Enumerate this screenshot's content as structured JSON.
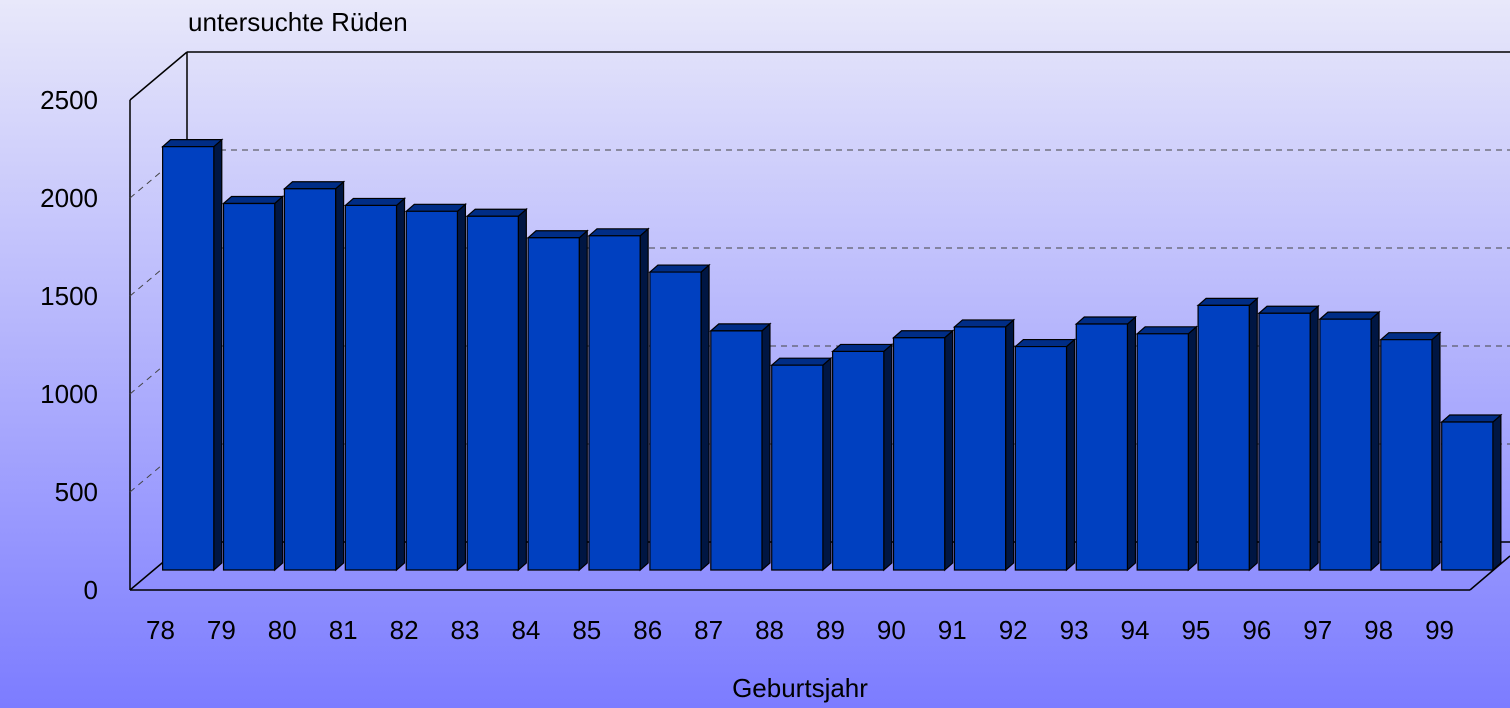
{
  "chart_data": {
    "type": "bar3d",
    "title": "untersuchte Rüden",
    "x_label": "Geburtsjahr",
    "categories": [
      "78",
      "79",
      "80",
      "81",
      "82",
      "83",
      "84",
      "85",
      "86",
      "87",
      "88",
      "89",
      "90",
      "91",
      "92",
      "93",
      "94",
      "95",
      "96",
      "97",
      "98",
      "99"
    ],
    "values": [
      2160,
      1870,
      1945,
      1860,
      1830,
      1805,
      1695,
      1705,
      1520,
      1220,
      1045,
      1115,
      1185,
      1240,
      1140,
      1255,
      1205,
      1350,
      1310,
      1280,
      1175,
      755
    ],
    "color": "#0040c0",
    "ylim": [
      0,
      2500
    ],
    "yticks": [
      0,
      500,
      1000,
      1500,
      2000,
      2500
    ],
    "grid": true
  }
}
